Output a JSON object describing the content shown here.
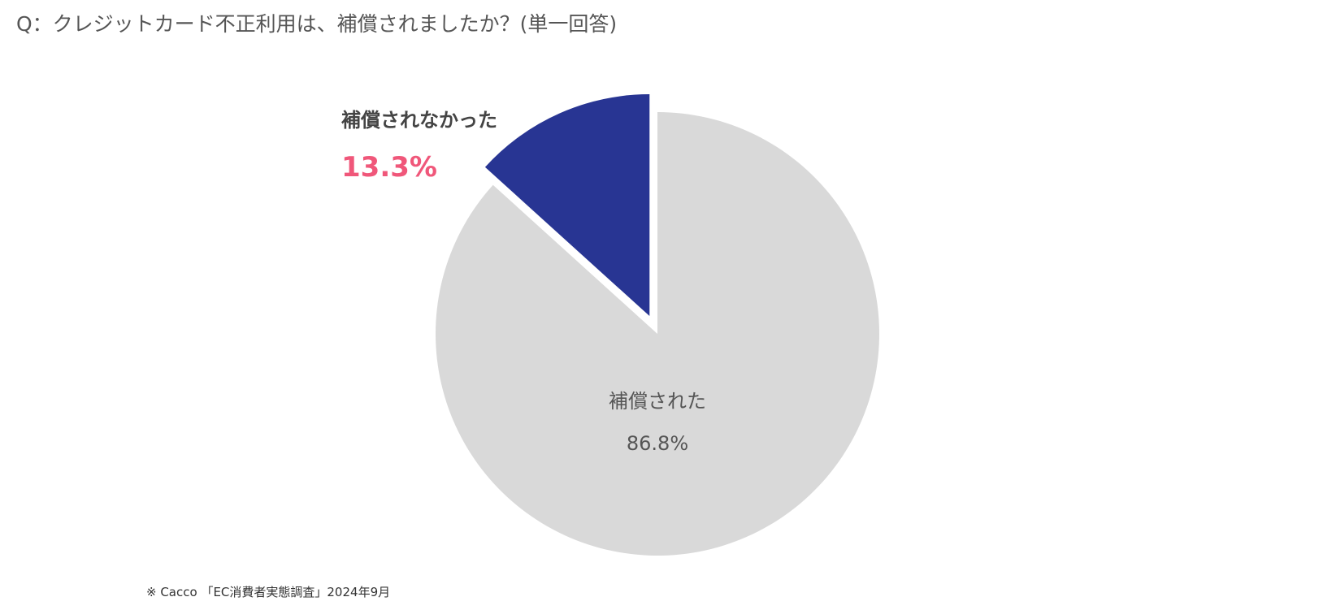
{
  "chart_data": {
    "type": "pie",
    "title": "Q：クレジットカード不正利用は、補償されましたか？(単一回答)",
    "slices": [
      {
        "label": "補償されなかった",
        "value": 13.3,
        "value_label": "13.3%",
        "color": "#283593",
        "exploded": true
      },
      {
        "label": "補償された",
        "value": 86.8,
        "value_label": "86.8%",
        "color": "#d9d9d9",
        "exploded": false
      }
    ],
    "start": "12 o'clock",
    "direction": "counterclockwise",
    "label_color_highlight": "#f0577a"
  },
  "footer": "※ Cacco 「EC消費者実態調査」2024年9月"
}
